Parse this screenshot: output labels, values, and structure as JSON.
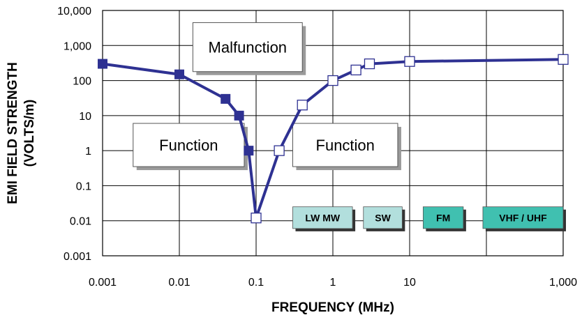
{
  "chart_data": {
    "type": "line",
    "title": "",
    "xlabel": "FREQUENCY  (MHz)",
    "ylabel_line1": "EMI FIELD STRENGTH",
    "ylabel_line2": "(VOLTS/m)",
    "x_scale": "log",
    "y_scale": "log",
    "xlim": [
      0.001,
      1000
    ],
    "ylim": [
      0.001,
      10000
    ],
    "grid": true,
    "x_ticks": [
      {
        "value": 0.001,
        "label": "0.001"
      },
      {
        "value": 0.01,
        "label": "0.01"
      },
      {
        "value": 0.1,
        "label": "0.1"
      },
      {
        "value": 1,
        "label": "1"
      },
      {
        "value": 10,
        "label": "10"
      },
      {
        "value": 1000,
        "label": "1,000"
      }
    ],
    "x_gridlines": [
      0.001,
      0.01,
      0.1,
      1,
      10,
      100,
      1000
    ],
    "y_ticks": [
      {
        "value": 0.001,
        "label": "0.001"
      },
      {
        "value": 0.01,
        "label": "0.01"
      },
      {
        "value": 0.1,
        "label": "0.1"
      },
      {
        "value": 1,
        "label": "1"
      },
      {
        "value": 10,
        "label": "10"
      },
      {
        "value": 100,
        "label": "100"
      },
      {
        "value": 1000,
        "label": "1,000"
      },
      {
        "value": 10000,
        "label": "10,000"
      }
    ],
    "series": [
      {
        "marker": "filled-square",
        "color": "#2e3192",
        "x": [
          0.001,
          0.01,
          0.04,
          0.06,
          0.08,
          0.1
        ],
        "y": [
          300,
          150,
          30,
          10,
          1,
          0.012
        ]
      },
      {
        "marker": "open-square",
        "color": "#2e3192",
        "x": [
          0.1,
          0.2,
          0.4,
          1,
          2,
          3,
          10,
          1000
        ],
        "y": [
          0.012,
          1,
          20,
          100,
          200,
          300,
          350,
          400
        ]
      }
    ],
    "annotations": [
      {
        "text": "Malfunction",
        "x": [
          0.015,
          0.4
        ],
        "y": [
          180,
          4500
        ]
      },
      {
        "text": "Function",
        "x": [
          0.0025,
          0.07
        ],
        "y": [
          0.35,
          6
        ]
      },
      {
        "text": "Function",
        "x": [
          0.3,
          7
        ],
        "y": [
          0.35,
          6
        ]
      }
    ],
    "bands": [
      {
        "label": "LW  MW",
        "x": [
          0.3,
          1.8
        ],
        "y": [
          0.006,
          0.025
        ],
        "color": "#b2dfdd"
      },
      {
        "label": "SW",
        "x": [
          2.5,
          8
        ],
        "y": [
          0.006,
          0.025
        ],
        "color": "#b2dfdd"
      },
      {
        "label": "FM",
        "x": [
          15,
          50
        ],
        "y": [
          0.006,
          0.025
        ],
        "color": "#40c0b0"
      },
      {
        "label": "VHF  / UHF",
        "x": [
          90,
          1000
        ],
        "y": [
          0.006,
          0.025
        ],
        "color": "#40c0b0"
      }
    ]
  }
}
